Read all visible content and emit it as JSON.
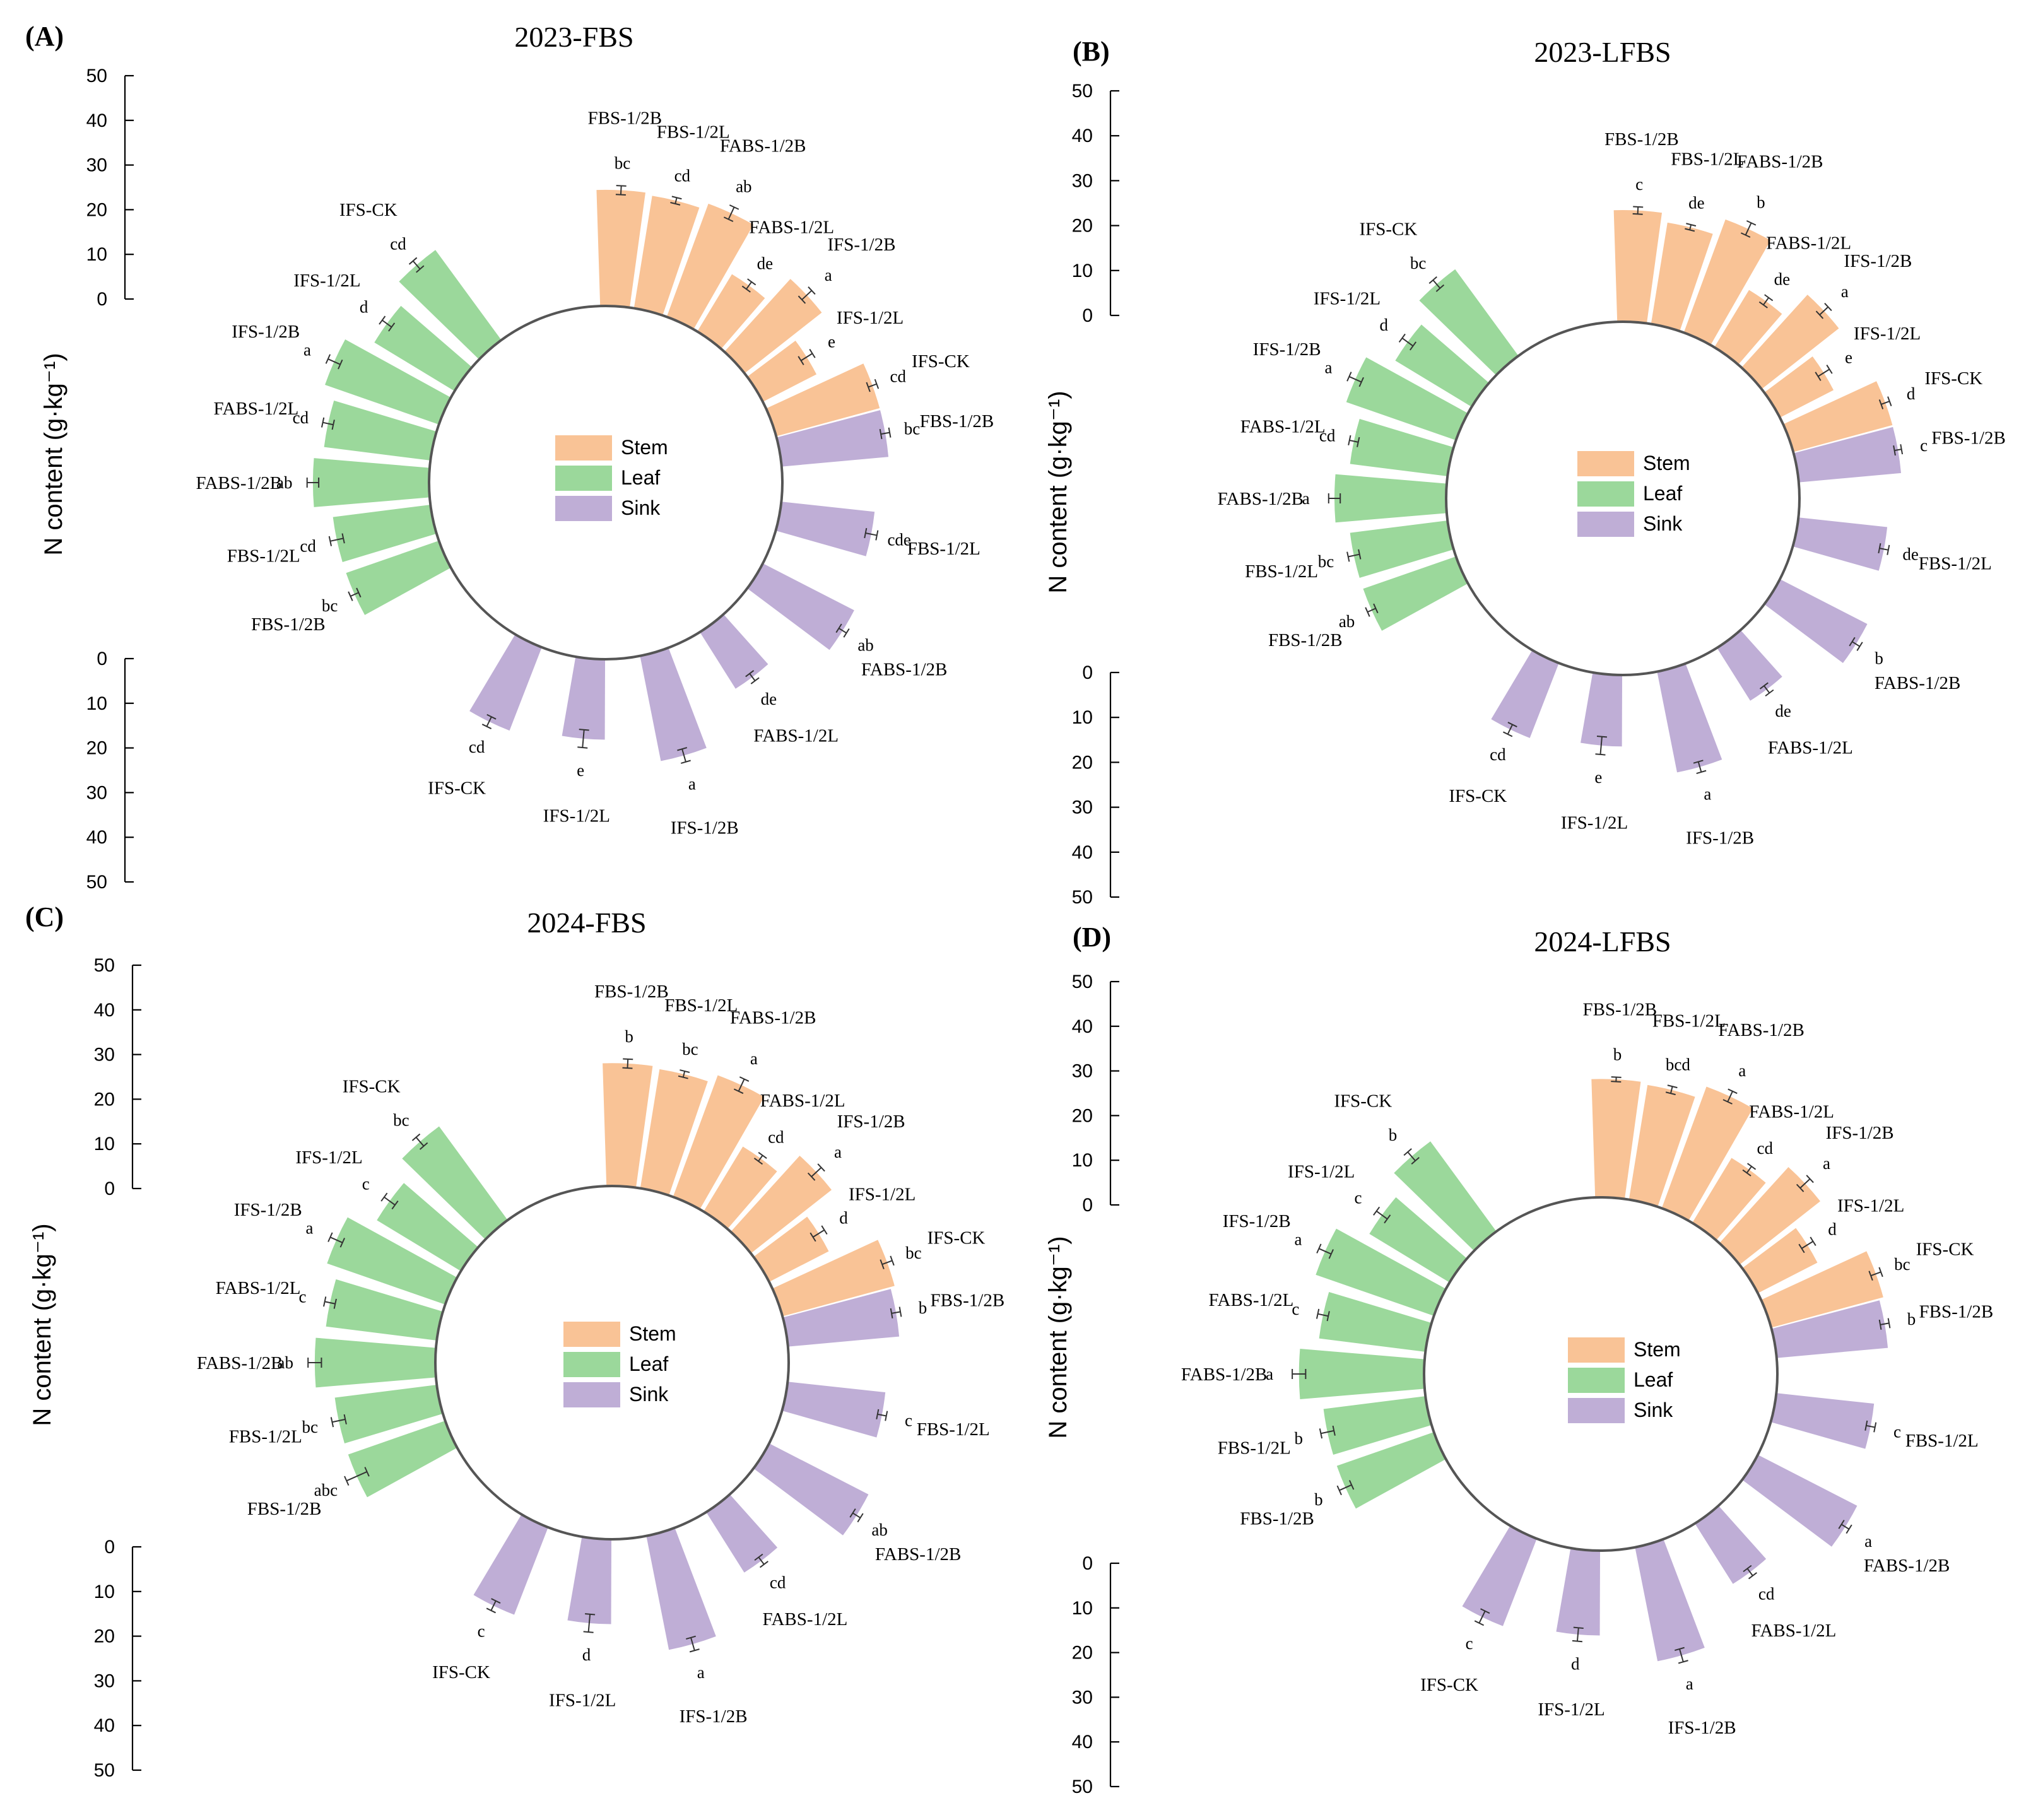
{
  "figure": {
    "ylabel": "N content (g·kg⁻¹)",
    "axis_ticks": [
      "0",
      "10",
      "20",
      "30",
      "40",
      "50"
    ],
    "legend": [
      "Stem",
      "Leaf",
      "Sink"
    ],
    "colors": {
      "Stem": "#f9c396",
      "Leaf": "#9bd89b",
      "Sink": "#bfaed6"
    }
  },
  "chart_data": [
    {
      "panel": "(A)",
      "type": "bar",
      "layout": "circular",
      "title": "2023-FBS",
      "ylabel": "N content (g·kg⁻¹)",
      "ylim": [
        0,
        50
      ],
      "series": [
        {
          "name": "Stem",
          "categories": [
            "FBS-1/2B",
            "FBS-1/2L",
            "FABS-1/2B",
            "FABS-1/2L",
            "IFS-1/2B",
            "IFS-1/2L",
            "IFS-CK"
          ],
          "values": [
            26,
            25.5,
            27,
            15,
            22,
            13.5,
            24
          ],
          "errors": [
            1,
            0.7,
            1.5,
            1,
            1.5,
            1.5,
            1
          ],
          "letters": [
            "bc",
            "cd",
            "ab",
            "de",
            "a",
            "e",
            "cd"
          ]
        },
        {
          "name": "Leaf",
          "categories": [
            "IFS-CK",
            "IFS-1/2L",
            "IFS-1/2B",
            "FABS-1/2L",
            "FABS-1/2B",
            "FBS-1/2L",
            "FBS-1/2B"
          ],
          "values": [
            25,
            21,
            27,
            24,
            26,
            22,
            22
          ],
          "errors": [
            1.2,
            1.3,
            1.5,
            1.2,
            1.3,
            1.5,
            1
          ],
          "letters": [
            "cd",
            "d",
            "a",
            "cd",
            "ab",
            "cd",
            "bc"
          ]
        },
        {
          "name": "Sink",
          "categories": [
            "FBS-1/2B",
            "FBS-1/2L",
            "FABS-1/2B",
            "FABS-1/2L",
            "IFS-1/2B",
            "IFS-1/2L",
            "IFS-CK"
          ],
          "values": [
            24,
            21,
            23,
            15,
            24,
            18,
            20
          ],
          "errors": [
            1,
            1.3,
            1,
            1,
            1.5,
            2,
            1.2
          ],
          "letters": [
            "bc",
            "cde",
            "ab",
            "de",
            "a",
            "e",
            "cd"
          ]
        }
      ]
    },
    {
      "panel": "(B)",
      "type": "bar",
      "layout": "circular",
      "title": "2023-LFBS",
      "ylabel": "N content (g·kg⁻¹)",
      "ylim": [
        0,
        50
      ],
      "series": [
        {
          "name": "Stem",
          "categories": [
            "FBS-1/2B",
            "FBS-1/2L",
            "FABS-1/2B",
            "FABS-1/2L",
            "IFS-1/2B",
            "IFS-1/2L",
            "IFS-CK"
          ],
          "values": [
            25,
            23,
            27,
            15,
            22,
            13.5,
            23
          ],
          "errors": [
            0.8,
            0.6,
            1.5,
            1,
            1.3,
            1.5,
            1
          ],
          "letters": [
            "c",
            "de",
            "b",
            "de",
            "a",
            "e",
            "d"
          ]
        },
        {
          "name": "Leaf",
          "categories": [
            "IFS-CK",
            "IFS-1/2L",
            "IFS-1/2B",
            "FABS-1/2L",
            "FABS-1/2B",
            "FBS-1/2L",
            "FBS-1/2B"
          ],
          "values": [
            24,
            20,
            26,
            22,
            25,
            22,
            22
          ],
          "errors": [
            1.2,
            1.5,
            1.5,
            1,
            1.3,
            1.3,
            1
          ],
          "letters": [
            "bc",
            "d",
            "a",
            "cd",
            "a",
            "bc",
            "ab"
          ]
        },
        {
          "name": "Sink",
          "categories": [
            "FBS-1/2B",
            "FBS-1/2L",
            "FABS-1/2B",
            "FABS-1/2L",
            "IFS-1/2B",
            "IFS-1/2L",
            "IFS-CK"
          ],
          "values": [
            23,
            20,
            22,
            14,
            23,
            16,
            18
          ],
          "errors": [
            0.8,
            1,
            1,
            1,
            1.2,
            2,
            1.2
          ],
          "letters": [
            "c",
            "de",
            "b",
            "de",
            "a",
            "e",
            "cd"
          ]
        }
      ]
    },
    {
      "panel": "(C)",
      "type": "bar",
      "layout": "circular",
      "title": "2024-FBS",
      "ylabel": "N content (g·kg⁻¹)",
      "ylim": [
        0,
        50
      ],
      "series": [
        {
          "name": "Stem",
          "categories": [
            "FBS-1/2B",
            "FBS-1/2L",
            "FABS-1/2B",
            "FABS-1/2L",
            "IFS-1/2B",
            "IFS-1/2L",
            "IFS-CK"
          ],
          "values": [
            27.5,
            27,
            29,
            17,
            23,
            15,
            26
          ],
          "errors": [
            1,
            0.7,
            1.5,
            0.8,
            1.5,
            1.5,
            1.2
          ],
          "letters": [
            "b",
            "bc",
            "a",
            "cd",
            "a",
            "d",
            "bc"
          ]
        },
        {
          "name": "Leaf",
          "categories": [
            "IFS-CK",
            "IFS-1/2L",
            "IFS-1/2B",
            "FABS-1/2L",
            "FABS-1/2B",
            "FBS-1/2L",
            "FBS-1/2B"
          ],
          "values": [
            26,
            22,
            28,
            25,
            27,
            23,
            23
          ],
          "errors": [
            1.3,
            1.5,
            1.5,
            1.2,
            1.5,
            1.5,
            2.5
          ],
          "letters": [
            "bc",
            "c",
            "a",
            "c",
            "ab",
            "bc",
            "abc"
          ]
        },
        {
          "name": "Sink",
          "categories": [
            "FBS-1/2B",
            "FBS-1/2L",
            "FABS-1/2B",
            "FABS-1/2L",
            "IFS-1/2B",
            "IFS-1/2L",
            "IFS-CK"
          ],
          "values": [
            25,
            22,
            25,
            16,
            26,
            19,
            21
          ],
          "errors": [
            1,
            1,
            1,
            1,
            1.5,
            2,
            1.2
          ],
          "letters": [
            "b",
            "c",
            "ab",
            "cd",
            "a",
            "d",
            "c"
          ]
        }
      ]
    },
    {
      "panel": "(D)",
      "type": "bar",
      "layout": "circular",
      "title": "2024-LFBS",
      "ylabel": "N content (g·kg⁻¹)",
      "ylim": [
        0,
        50
      ],
      "series": [
        {
          "name": "Stem",
          "categories": [
            "FBS-1/2B",
            "FBS-1/2L",
            "FABS-1/2B",
            "FABS-1/2L",
            "IFS-1/2B",
            "IFS-1/2L",
            "IFS-CK"
          ],
          "values": [
            26.5,
            26,
            29,
            17,
            23,
            15,
            26
          ],
          "errors": [
            0.5,
            0.8,
            1.3,
            0.9,
            1.5,
            1.5,
            1.2
          ],
          "letters": [
            "b",
            "bcd",
            "a",
            "cd",
            "a",
            "d",
            "bc"
          ]
        },
        {
          "name": "Leaf",
          "categories": [
            "IFS-CK",
            "IFS-1/2L",
            "IFS-1/2B",
            "FABS-1/2L",
            "FABS-1/2B",
            "FBS-1/2L",
            "FBS-1/2B"
          ],
          "values": [
            25,
            21,
            28,
            24,
            28,
            23,
            23
          ],
          "errors": [
            1.3,
            1.5,
            1.5,
            1.2,
            1.5,
            1.5,
            1.5
          ],
          "letters": [
            "b",
            "c",
            "a",
            "c",
            "a",
            "b",
            "b"
          ]
        },
        {
          "name": "Sink",
          "categories": [
            "FBS-1/2B",
            "FBS-1/2L",
            "FABS-1/2B",
            "FABS-1/2L",
            "IFS-1/2B",
            "IFS-1/2L",
            "IFS-CK"
          ],
          "values": [
            25,
            22,
            25,
            16,
            26,
            19,
            21
          ],
          "errors": [
            1,
            1,
            1,
            1,
            1.5,
            1.5,
            1.5
          ],
          "letters": [
            "b",
            "c",
            "a",
            "cd",
            "a",
            "d",
            "c"
          ]
        }
      ]
    }
  ]
}
